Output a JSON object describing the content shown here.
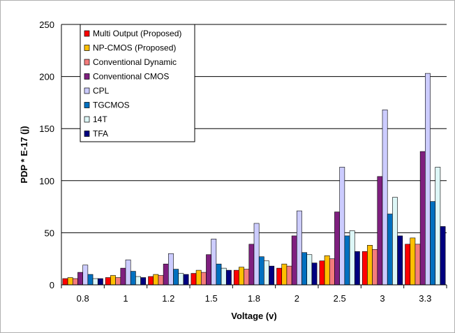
{
  "chart_data": {
    "type": "bar",
    "title": "",
    "xlabel": "Voltage (v)",
    "ylabel": "PDP * E-17 (j)",
    "ylim": [
      0,
      250
    ],
    "yticks": [
      0,
      50,
      100,
      150,
      200,
      250
    ],
    "grid": true,
    "legend_position": "top-left",
    "categories": [
      "0.8",
      "1",
      "1.2",
      "1.5",
      "1.8",
      "2",
      "2.5",
      "3",
      "3.3"
    ],
    "series": [
      {
        "name": "Multi Output (Proposed)",
        "color": "#ff0000",
        "values": [
          6,
          7,
          8,
          11,
          14,
          16,
          23,
          32,
          39
        ]
      },
      {
        "name": "NP-CMOS (Proposed)",
        "color": "#ffc000",
        "values": [
          7,
          9,
          10,
          14,
          17,
          20,
          28,
          38,
          45
        ]
      },
      {
        "name": "Conventional Dynamic",
        "color": "#f47c7c",
        "values": [
          6,
          7,
          9,
          12,
          15,
          18,
          25,
          34,
          39
        ]
      },
      {
        "name": "Conventional CMOS",
        "color": "#7f1f7f",
        "values": [
          12,
          16,
          20,
          29,
          39,
          47,
          70,
          104,
          128
        ]
      },
      {
        "name": "CPL",
        "color": "#ccccff",
        "values": [
          19,
          24,
          30,
          44,
          59,
          71,
          113,
          168,
          203
        ]
      },
      {
        "name": "TGCMOS",
        "color": "#0070c0",
        "values": [
          10,
          13,
          15,
          20,
          27,
          31,
          47,
          68,
          80
        ]
      },
      {
        "name": "14T",
        "color": "#ddf7f7",
        "values": [
          6,
          8,
          11,
          16,
          23,
          29,
          52,
          84,
          113
        ]
      },
      {
        "name": "TFA",
        "color": "#000080",
        "values": [
          6,
          7,
          10,
          14,
          18,
          21,
          32,
          47,
          56
        ]
      }
    ]
  }
}
